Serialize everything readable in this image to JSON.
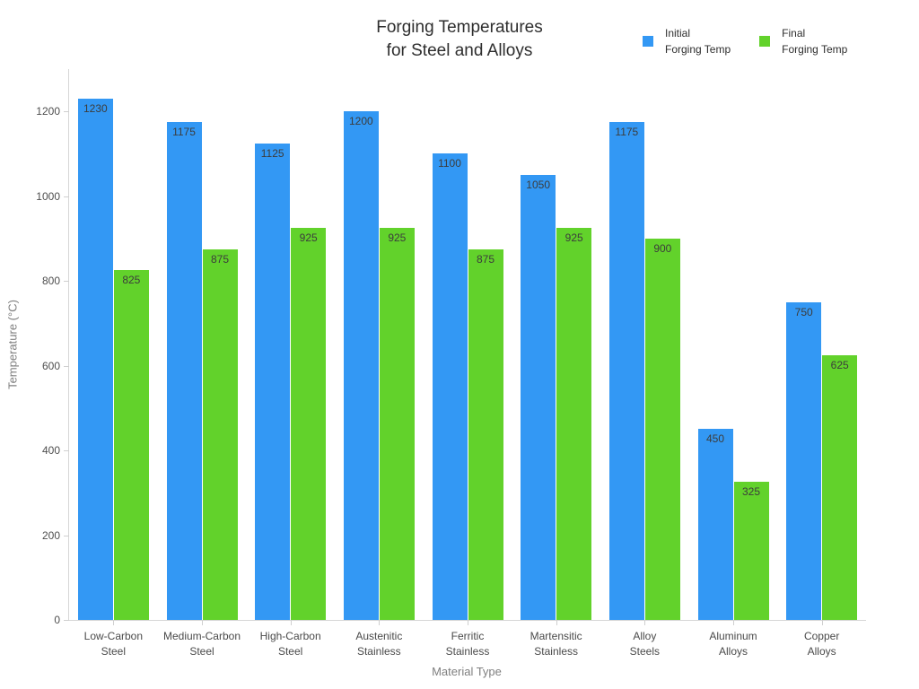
{
  "title": "Forging Temperatures\nfor Steel and Alloys",
  "legend": [
    {
      "label": "Initial\nForging Temp",
      "color": "#3398f4"
    },
    {
      "label": "Final\nForging Temp",
      "color": "#62d22b"
    }
  ],
  "chart_data": {
    "type": "bar",
    "title": "Forging Temperatures for Steel and Alloys",
    "xlabel": "Material Type",
    "ylabel": "Temperature (°C)",
    "ylim": [
      0,
      1300
    ],
    "yticks": [
      0,
      200,
      400,
      600,
      800,
      1000,
      1200
    ],
    "grid": false,
    "legend_position": "top-right",
    "bar_labels": "inside-top",
    "categories": [
      "Low-Carbon\nSteel",
      "Medium-Carbon\nSteel",
      "High-Carbon\nSteel",
      "Austenitic\nStainless",
      "Ferritic\nStainless",
      "Martensitic\nStainless",
      "Alloy\nSteels",
      "Aluminum\nAlloys",
      "Copper\nAlloys"
    ],
    "series": [
      {
        "name": "Initial Forging Temp",
        "color": "#3398f4",
        "values": [
          1230,
          1175,
          1125,
          1200,
          1100,
          1050,
          1175,
          450,
          750
        ]
      },
      {
        "name": "Final Forging Temp",
        "color": "#62d22b",
        "values": [
          825,
          875,
          925,
          925,
          875,
          925,
          900,
          325,
          625
        ]
      }
    ]
  },
  "colors": {
    "axis_line": "#d6d6d6",
    "tick": "#cfcfcf",
    "tick_label": "#4a4a4a",
    "axis_title": "#7f7f7f",
    "title_text": "#2e2e2e",
    "bar_value_label": "#3c3c3c",
    "background": "#ffffff"
  }
}
